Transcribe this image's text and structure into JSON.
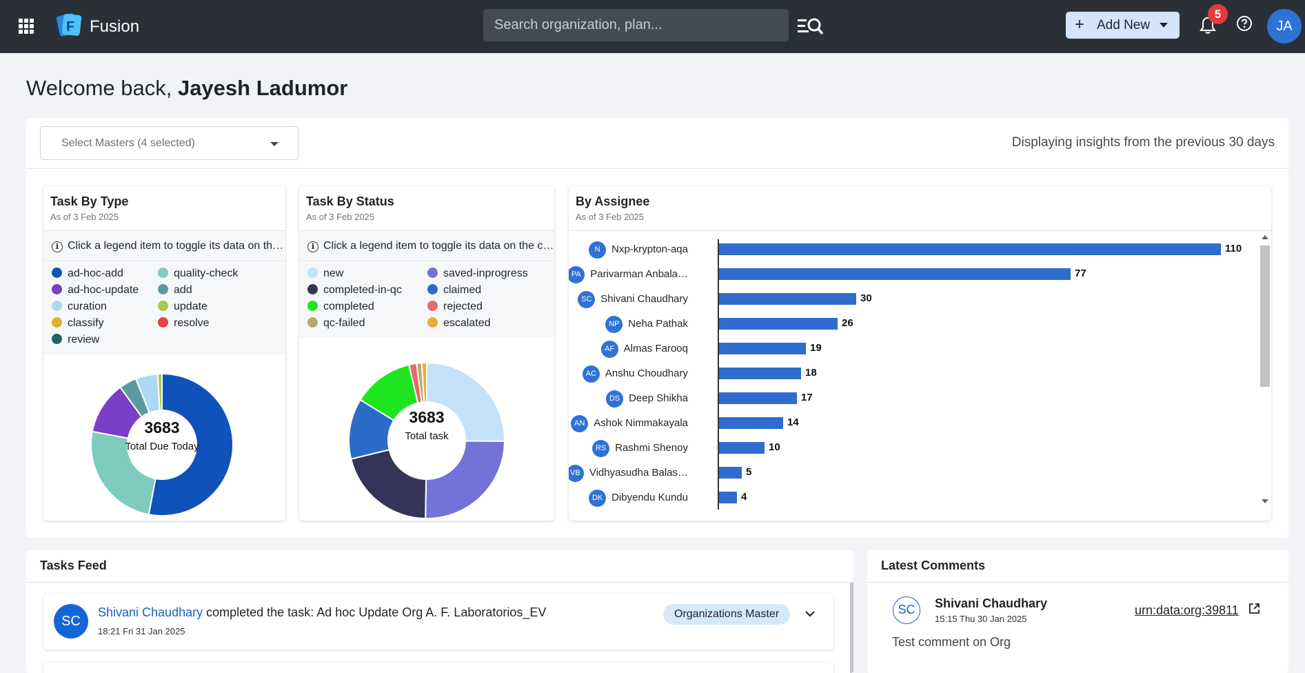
{
  "app": {
    "name": "Fusion"
  },
  "search": {
    "placeholder": "Search organization, plan..."
  },
  "header": {
    "add_new": "Add New",
    "notification_count": "5",
    "user_initials": "JA"
  },
  "welcome": {
    "prefix": "Welcome back, ",
    "name": "Jayesh Ladumor"
  },
  "filters": {
    "masters_label": "Select Masters (4 selected)",
    "insights_note": "Displaying insights from the previous 30 days"
  },
  "task_by_type": {
    "title": "Task By Type",
    "as_of": "As of 3 Feb 2025",
    "hint": "Click a legend item to toggle its data on the chart",
    "center_value": "3683",
    "center_label": "Total Due Today",
    "legend": [
      {
        "label": "ad-hoc-add",
        "color": "#0f52ba"
      },
      {
        "label": "quality-check",
        "color": "#7fcbc0"
      },
      {
        "label": "ad-hoc-update",
        "color": "#7b3ec6"
      },
      {
        "label": "add",
        "color": "#5b9aa0"
      },
      {
        "label": "curation",
        "color": "#acd8f4"
      },
      {
        "label": "update",
        "color": "#a8c94a"
      },
      {
        "label": "classify",
        "color": "#d9b232"
      },
      {
        "label": "resolve",
        "color": "#e8433f"
      },
      {
        "label": "review",
        "color": "#1e6660"
      }
    ]
  },
  "task_by_status": {
    "title": "Task By Status",
    "as_of": "As of 3 Feb 2025",
    "hint": "Click a legend item to toggle its data on the chart",
    "center_value": "3683",
    "center_label": "Total task",
    "legend": [
      {
        "label": "new",
        "color": "#c4e1f7"
      },
      {
        "label": "saved-inprogress",
        "color": "#7272d9"
      },
      {
        "label": "completed-in-qc",
        "color": "#34345a"
      },
      {
        "label": "claimed",
        "color": "#2b6cc9"
      },
      {
        "label": "completed",
        "color": "#1ee61e"
      },
      {
        "label": "rejected",
        "color": "#e36a6a"
      },
      {
        "label": "qc-failed",
        "color": "#b8a96a"
      },
      {
        "label": "escalated",
        "color": "#f0a93a"
      }
    ]
  },
  "by_assignee": {
    "title": "By Assignee",
    "as_of": "As of 3 Feb 2025",
    "rows": [
      {
        "initials": "N",
        "name": "Nxp-krypton-aqa",
        "value": 110
      },
      {
        "initials": "PA",
        "name": "Parivarman Anbala…",
        "value": 77
      },
      {
        "initials": "SC",
        "name": "Shivani Chaudhary",
        "value": 30
      },
      {
        "initials": "NP",
        "name": "Neha Pathak",
        "value": 26
      },
      {
        "initials": "AF",
        "name": "Almas Farooq",
        "value": 19
      },
      {
        "initials": "AC",
        "name": "Anshu Choudhary",
        "value": 18
      },
      {
        "initials": "DS",
        "name": "Deep Shikha",
        "value": 17
      },
      {
        "initials": "AN",
        "name": "Ashok Nimmakayala",
        "value": 14
      },
      {
        "initials": "RS",
        "name": "Rashmi Shenoy",
        "value": 10
      },
      {
        "initials": "VB",
        "name": "Vidhyasudha Balas…",
        "value": 5
      },
      {
        "initials": "DK",
        "name": "Dibyendu Kundu",
        "value": 4
      }
    ]
  },
  "chart_data": [
    {
      "type": "pie",
      "title": "Task By Type",
      "categories": [
        "ad-hoc-add",
        "quality-check",
        "ad-hoc-update",
        "add",
        "curation",
        "update"
      ],
      "values": [
        53,
        25,
        12,
        4,
        5,
        1
      ]
    },
    {
      "type": "pie",
      "title": "Task By Status",
      "categories": [
        "new",
        "saved-inprogress",
        "completed-in-qc",
        "claimed",
        "completed",
        "rejected",
        "qc-failed",
        "escalated"
      ],
      "values": [
        24,
        24,
        20,
        12,
        12,
        1.5,
        1,
        1
      ]
    },
    {
      "type": "bar",
      "title": "By Assignee",
      "categories": [
        "Nxp-krypton-aqa",
        "Parivarman Anbala…",
        "Shivani Chaudhary",
        "Neha Pathak",
        "Almas Farooq",
        "Anshu Choudhary",
        "Deep Shikha",
        "Ashok Nimmakayala",
        "Rashmi Shenoy",
        "Vidhyasudha Balas…",
        "Dibyendu Kundu"
      ],
      "values": [
        110,
        77,
        30,
        26,
        19,
        18,
        17,
        14,
        10,
        5,
        4
      ]
    }
  ],
  "tasks_feed": {
    "title": "Tasks Feed",
    "items": [
      {
        "initials": "SC",
        "user": "Shivani Chaudhary",
        "action": " completed the task: Ad hoc Update Org A. F. Laboratorios_EV",
        "time": "18:21 Fri 31 Jan 2025",
        "tag": "Organizations Master"
      }
    ]
  },
  "latest_comments": {
    "title": "Latest Comments",
    "items": [
      {
        "initials": "SC",
        "user": "Shivani Chaudhary",
        "time": "15:15 Thu 30 Jan 2025",
        "link": "urn:data:org:39811",
        "text": "Test comment on Org"
      }
    ]
  }
}
